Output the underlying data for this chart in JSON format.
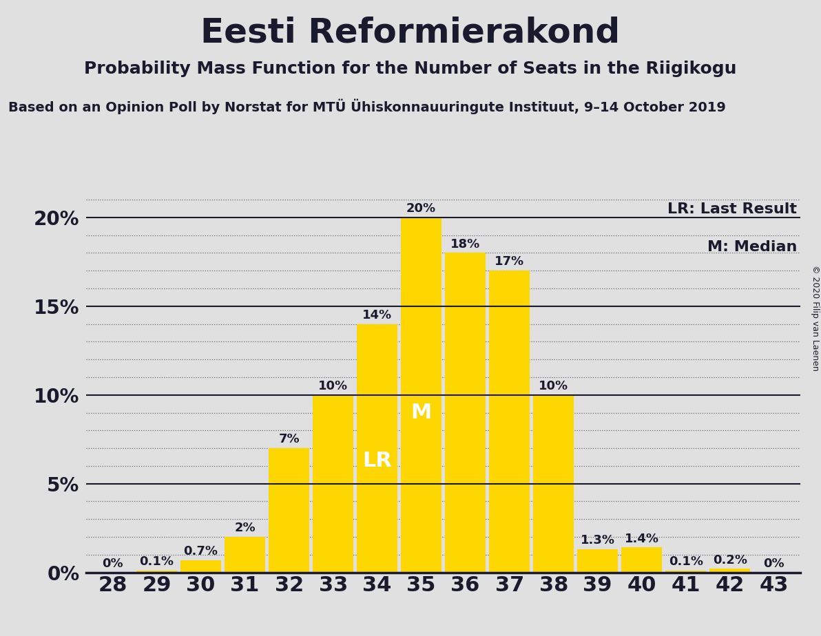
{
  "title": "Eesti Reformierakond",
  "subtitle": "Probability Mass Function for the Number of Seats in the Riigikogu",
  "source_line": "Based on an Opinion Poll by Norstat for MTÜ Ühiskonnauuringute Instituut, 9–14 October 2019",
  "copyright": "© 2020 Filip van Laenen",
  "seats": [
    28,
    29,
    30,
    31,
    32,
    33,
    34,
    35,
    36,
    37,
    38,
    39,
    40,
    41,
    42,
    43
  ],
  "probabilities": [
    0.0,
    0.1,
    0.7,
    2.0,
    7.0,
    10.0,
    14.0,
    20.0,
    18.0,
    17.0,
    10.0,
    1.3,
    1.4,
    0.1,
    0.2,
    0.0
  ],
  "bar_color": "#FFD700",
  "background_color": "#E0E0E0",
  "text_color": "#1a1a2e",
  "lr_seat": 34,
  "median_seat": 35,
  "lr_label": "LR",
  "median_label": "M",
  "legend_lr": "LR: Last Result",
  "legend_m": "M: Median",
  "yticks": [
    0,
    5,
    10,
    15,
    20
  ],
  "ylim": [
    0,
    21.5
  ],
  "ylabel_fontsize": 20,
  "xlabel_fontsize": 22,
  "title_fontsize": 36,
  "subtitle_fontsize": 18,
  "source_fontsize": 14,
  "bar_label_fontsize": 13,
  "annotation_fontsize": 22,
  "legend_fontsize": 16
}
